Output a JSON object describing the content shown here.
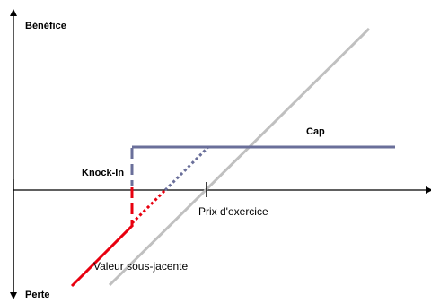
{
  "diagram": {
    "labels": {
      "y_top": "Bénéfice",
      "y_bottom": "Perte",
      "knock_in": "Knock-In",
      "cap": "Cap",
      "strike": "Prix d'exercice",
      "underlying": "Valeur sous-jacente"
    },
    "colors": {
      "axis": "#000000",
      "underlying_line": "#c0c0c0",
      "payoff_line": "#6a6f9a",
      "loss_line": "#e8000f"
    }
  }
}
